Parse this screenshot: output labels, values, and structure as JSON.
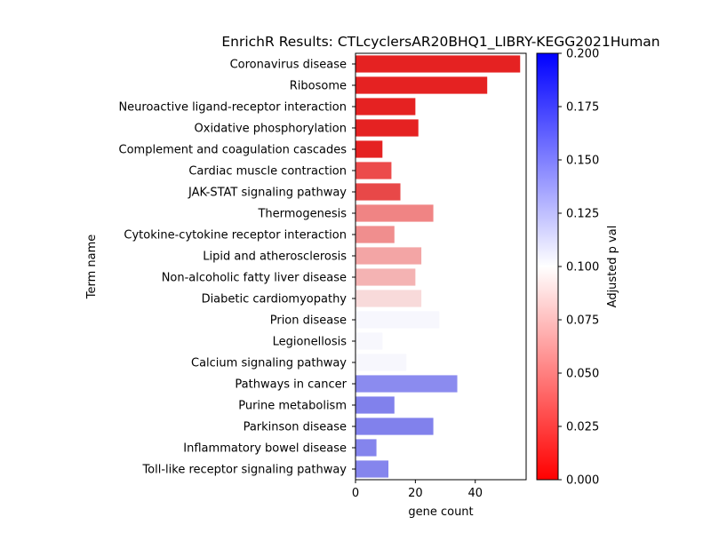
{
  "chart_data": {
    "type": "bar",
    "orientation": "horizontal",
    "title": "EnrichR Results: CTLcyclersAR20BHQ1_LIBRY-KEGG2021Human",
    "xlabel": "gene count",
    "ylabel": "Term name",
    "xlim": [
      0,
      57
    ],
    "xticks": [
      "0",
      "20",
      "40"
    ],
    "xtick_values": [
      0,
      20,
      40
    ],
    "grid": false,
    "categories": [
      "Coronavirus disease",
      "Ribosome",
      "Neuroactive ligand-receptor interaction",
      "Oxidative phosphorylation",
      "Complement and coagulation cascades",
      "Cardiac muscle contraction",
      "JAK-STAT signaling pathway",
      "Thermogenesis",
      "Cytokine-cytokine receptor interaction",
      "Lipid and atherosclerosis",
      "Non-alcoholic fatty liver disease",
      "Diabetic cardiomyopathy",
      "Prion disease",
      "Legionellosis",
      "Calcium signaling pathway",
      "Pathways in cancer",
      "Purine metabolism",
      "Parkinson disease",
      "Inflammatory bowel disease",
      "Toll-like receptor signaling pathway"
    ],
    "values": [
      55,
      44,
      20,
      21,
      9,
      12,
      15,
      26,
      13,
      22,
      20,
      22,
      28,
      9,
      17,
      34,
      13,
      26,
      7,
      11
    ],
    "bar_colors": [
      "#e52222",
      "#e52222",
      "#e52222",
      "#e52222",
      "#e52222",
      "#ec4b4b",
      "#e84848",
      "#f08484",
      "#f08e8e",
      "#f3a5a5",
      "#f4b3b3",
      "#f8dada",
      "#f7f7fd",
      "#f7f7fd",
      "#f7f7fd",
      "#8b8bef",
      "#8181ec",
      "#8181ec",
      "#8484ed",
      "#8585ed"
    ],
    "colorbar": {
      "label": "Adjusted p val",
      "vmin": 0.0,
      "vmax": 0.2,
      "ticks": [
        "0.000",
        "0.025",
        "0.050",
        "0.075",
        "0.100",
        "0.125",
        "0.150",
        "0.175",
        "0.200"
      ],
      "tick_values": [
        0.0,
        0.025,
        0.05,
        0.075,
        0.1,
        0.125,
        0.15,
        0.175,
        0.2
      ],
      "color_low": "#ff0000",
      "color_mid": "#ffffff",
      "color_high": "#0000ff"
    }
  }
}
